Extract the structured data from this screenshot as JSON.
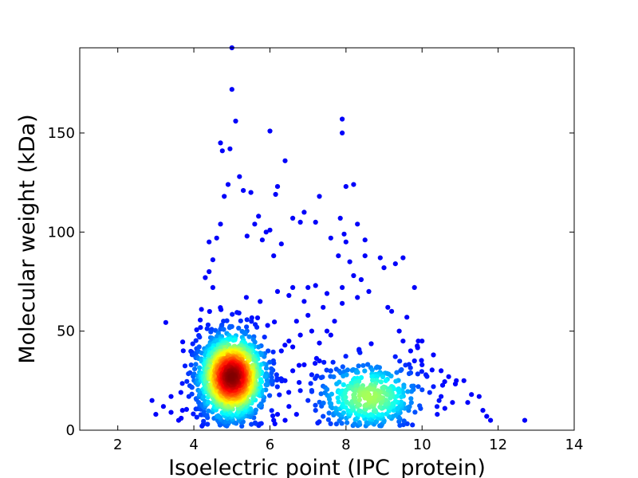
{
  "chart_data": {
    "type": "scatter",
    "title": "",
    "xlabel": "Isoelectric point (IPC_protein)",
    "ylabel": "Molecular weight (kDa)",
    "xlim": [
      1,
      14
    ],
    "ylim": [
      0,
      193
    ],
    "x_ticks": [
      2,
      4,
      6,
      8,
      10,
      12,
      14
    ],
    "y_ticks": [
      0,
      50,
      100,
      150
    ],
    "grid": false,
    "legend": "none",
    "colormap": "jet (point density)",
    "colors": {
      "low": "#0000cc",
      "mid": "#00bfff",
      "mid_high": "#ffff00",
      "high": "#ff0000",
      "peak": "#800000"
    },
    "density_clusters": [
      {
        "name": "acidic",
        "center_x": 5.0,
        "center_y": 27,
        "spread_x": 0.45,
        "spread_y": 11,
        "points": 1400
      },
      {
        "name": "basic",
        "center_x": 8.6,
        "center_y": 17,
        "spread_x": 0.7,
        "spread_y": 9,
        "points": 420
      }
    ],
    "points": [
      [
        5.0,
        193
      ],
      [
        5.0,
        172
      ],
      [
        5.1,
        156
      ],
      [
        6.0,
        151
      ],
      [
        7.9,
        157
      ],
      [
        7.9,
        150
      ],
      [
        4.7,
        145
      ],
      [
        4.75,
        141
      ],
      [
        4.95,
        142
      ],
      [
        6.4,
        136
      ],
      [
        5.2,
        128
      ],
      [
        4.8,
        118
      ],
      [
        4.9,
        124
      ],
      [
        5.3,
        121
      ],
      [
        5.5,
        120
      ],
      [
        6.2,
        123
      ],
      [
        6.15,
        119
      ],
      [
        7.3,
        118
      ],
      [
        8.0,
        123
      ],
      [
        8.2,
        124
      ],
      [
        6.6,
        107
      ],
      [
        6.9,
        110
      ],
      [
        6.8,
        105
      ],
      [
        7.2,
        105
      ],
      [
        7.85,
        107
      ],
      [
        7.95,
        99
      ],
      [
        8.0,
        95
      ],
      [
        8.3,
        104
      ],
      [
        8.5,
        96
      ],
      [
        7.6,
        97
      ],
      [
        5.7,
        108
      ],
      [
        6.0,
        101
      ],
      [
        5.6,
        104
      ],
      [
        6.3,
        94
      ],
      [
        5.9,
        100
      ],
      [
        4.4,
        95
      ],
      [
        4.6,
        97
      ],
      [
        4.7,
        104
      ],
      [
        5.4,
        98
      ],
      [
        5.8,
        96
      ],
      [
        8.9,
        87
      ],
      [
        9.0,
        82
      ],
      [
        9.3,
        84
      ],
      [
        9.5,
        87
      ],
      [
        9.8,
        72
      ],
      [
        8.5,
        88
      ],
      [
        8.1,
        85
      ],
      [
        7.8,
        88
      ],
      [
        8.2,
        78
      ],
      [
        7.9,
        72
      ],
      [
        8.4,
        76
      ],
      [
        7.2,
        73
      ],
      [
        7.0,
        72
      ],
      [
        6.6,
        72
      ],
      [
        6.2,
        70
      ],
      [
        6.9,
        65
      ],
      [
        7.5,
        69
      ],
      [
        7.4,
        62
      ],
      [
        7.9,
        64
      ],
      [
        8.3,
        67
      ],
      [
        8.6,
        70
      ],
      [
        9.1,
        62
      ],
      [
        9.2,
        60
      ],
      [
        9.6,
        57
      ],
      [
        9.9,
        45
      ],
      [
        10.0,
        45
      ],
      [
        10.3,
        38
      ],
      [
        10.5,
        30
      ],
      [
        10.7,
        27
      ],
      [
        10.9,
        25
      ],
      [
        11.1,
        25
      ],
      [
        11.3,
        18
      ],
      [
        11.5,
        17
      ],
      [
        11.2,
        14
      ],
      [
        11.6,
        10
      ],
      [
        11.7,
        7
      ],
      [
        11.8,
        5
      ],
      [
        12.7,
        5
      ],
      [
        10.8,
        14
      ],
      [
        10.6,
        11
      ],
      [
        10.4,
        8
      ],
      [
        10.2,
        19
      ],
      [
        2.9,
        15
      ],
      [
        3.0,
        8
      ],
      [
        3.2,
        12
      ],
      [
        3.4,
        9
      ],
      [
        3.4,
        17
      ],
      [
        3.6,
        5
      ],
      [
        3.7,
        10
      ],
      [
        3.9,
        29
      ],
      [
        4.0,
        38
      ],
      [
        4.1,
        23
      ],
      [
        4.2,
        61
      ],
      [
        4.3,
        77
      ],
      [
        4.4,
        80
      ],
      [
        4.5,
        86
      ],
      [
        4.5,
        72
      ],
      [
        6.1,
        88
      ],
      [
        6.5,
        68
      ],
      [
        6.7,
        55
      ],
      [
        7.0,
        58
      ],
      [
        7.1,
        50
      ],
      [
        6.8,
        48
      ],
      [
        6.5,
        45
      ],
      [
        6.3,
        40
      ],
      [
        6.6,
        42
      ],
      [
        7.3,
        44
      ],
      [
        7.5,
        50
      ],
      [
        7.7,
        55
      ],
      [
        7.6,
        48
      ],
      [
        9.4,
        50
      ],
      [
        9.5,
        45
      ],
      [
        9.7,
        40
      ],
      [
        9.8,
        35
      ],
      [
        10.0,
        33
      ],
      [
        10.1,
        28
      ],
      [
        9.9,
        22
      ],
      [
        10.3,
        22
      ],
      [
        10.5,
        17
      ],
      [
        6.4,
        25
      ],
      [
        6.6,
        30
      ],
      [
        6.9,
        33
      ],
      [
        7.1,
        28
      ],
      [
        7.3,
        35
      ],
      [
        6.8,
        20
      ],
      [
        7.0,
        15
      ],
      [
        7.2,
        10
      ],
      [
        6.5,
        12
      ],
      [
        6.2,
        8
      ],
      [
        6.1,
        5
      ],
      [
        6.4,
        5
      ],
      [
        6.7,
        8
      ],
      [
        7.4,
        7
      ],
      [
        7.6,
        12
      ],
      [
        7.8,
        20
      ],
      [
        7.6,
        30
      ]
    ]
  }
}
